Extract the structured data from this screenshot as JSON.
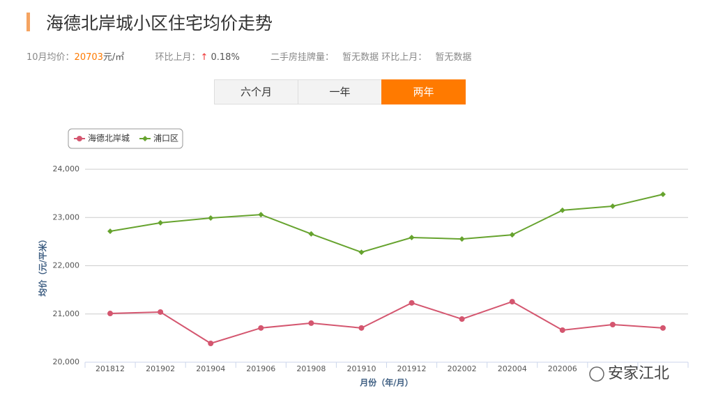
{
  "header": {
    "title": "海德北岸城小区住宅均价走势"
  },
  "stats": {
    "avg_label": "10月均价：",
    "avg_value": "20703",
    "avg_unit": "元/㎡",
    "mom_label": "环比上月：",
    "mom_arrow": "↑",
    "mom_value": "0.18%",
    "listing_label": "二手房挂牌量：",
    "listing_value": "暂无数据",
    "listing_mom_label": "环比上月：",
    "listing_mom_value": "暂无数据"
  },
  "tabs": [
    {
      "label": "六个月",
      "active": false
    },
    {
      "label": "一年",
      "active": false
    },
    {
      "label": "两年",
      "active": true
    }
  ],
  "watermark": "安家江北",
  "chart_data": {
    "type": "line",
    "x_label": "月份（年/月）",
    "y_label": "均价（元/平米）",
    "categories": [
      "201812",
      "201902",
      "201904",
      "201906",
      "201908",
      "201910",
      "201912",
      "202002",
      "202004",
      "202006",
      null,
      null
    ],
    "series": [
      {
        "name": "海德北岸城",
        "color": "#d4566f",
        "marker": "circle",
        "values": [
          21010,
          21040,
          20390,
          20710,
          20810,
          20710,
          21230,
          20895,
          21255,
          20665,
          20780,
          20710
        ]
      },
      {
        "name": "浦口区",
        "color": "#66a32e",
        "marker": "diamond",
        "values": [
          22715,
          22890,
          22990,
          23060,
          22660,
          22280,
          22585,
          22555,
          22640,
          23150,
          23235,
          23480
        ]
      }
    ],
    "ylim": [
      20000,
      24000
    ],
    "yticks": [
      {
        "value": 20000,
        "label": "20,000"
      },
      {
        "value": 21000,
        "label": "21,000"
      },
      {
        "value": 22000,
        "label": "22,000"
      },
      {
        "value": 23000,
        "label": "23,000"
      },
      {
        "value": 24000,
        "label": "24,000"
      }
    ],
    "grid": true,
    "legend": "top-left"
  }
}
